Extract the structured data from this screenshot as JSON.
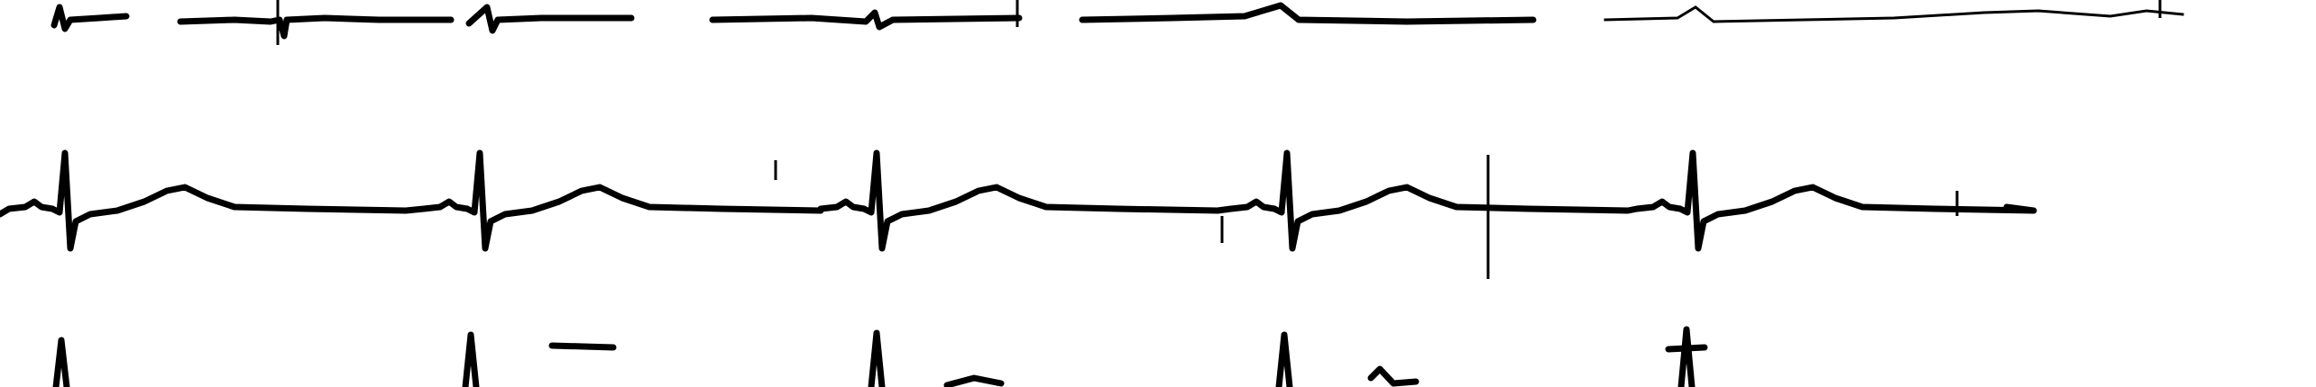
{
  "strip": {
    "background_color": "#ffffff",
    "trace_color": "#000000",
    "rows": [
      {
        "row": 1,
        "beats": 7
      },
      {
        "row": 2,
        "beats": 5
      },
      {
        "row": 3,
        "beats": 5
      }
    ]
  }
}
